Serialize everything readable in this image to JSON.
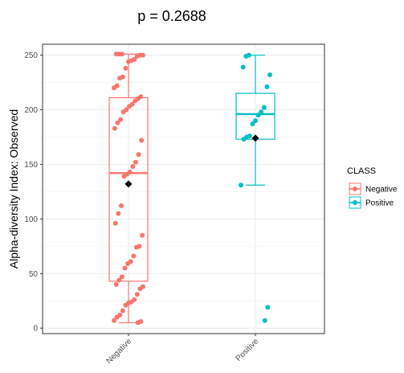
{
  "chart_data": {
    "type": "boxplot",
    "title": "p = 0.2688",
    "ylabel": "Alpha-diversity Index: Observed",
    "xlabel": "",
    "categories": [
      "Negative",
      "Positive"
    ],
    "ylim": [
      -5,
      260
    ],
    "yticks": [
      0,
      50,
      100,
      150,
      200,
      250
    ],
    "grid": true,
    "legend": {
      "title": "CLASS",
      "position": "right",
      "entries": [
        "Negative",
        "Positive"
      ]
    },
    "colors": {
      "Negative": "#F8766D",
      "Positive": "#00BFC4",
      "mean": "#000000"
    },
    "boxes": [
      {
        "category": "Negative",
        "lower_whisker": 5,
        "q1": 43,
        "median": 142,
        "q3": 211,
        "upper_whisker": 251,
        "mean": 132
      },
      {
        "category": "Positive",
        "lower_whisker": 131,
        "q1": 173,
        "median": 196,
        "q3": 215,
        "upper_whisker": 250,
        "mean": 174
      }
    ],
    "points": [
      {
        "category": "Negative",
        "values": [
          251,
          251,
          251,
          250,
          250,
          249,
          246,
          245,
          244,
          238,
          230,
          229,
          222,
          220,
          212,
          210,
          208,
          205,
          203,
          200,
          198,
          191,
          188,
          183,
          172,
          159,
          152,
          148,
          143,
          141,
          139,
          112,
          105,
          96,
          85,
          75,
          74,
          66,
          61,
          59,
          55,
          47,
          44,
          40,
          38,
          36,
          31,
          26,
          24,
          23,
          21,
          16,
          12,
          10,
          7,
          6,
          5
        ]
      },
      {
        "category": "Positive",
        "values": [
          250,
          249,
          239,
          232,
          221,
          202,
          198,
          195,
          190,
          187,
          176,
          175,
          173,
          131,
          19,
          7
        ]
      }
    ]
  }
}
